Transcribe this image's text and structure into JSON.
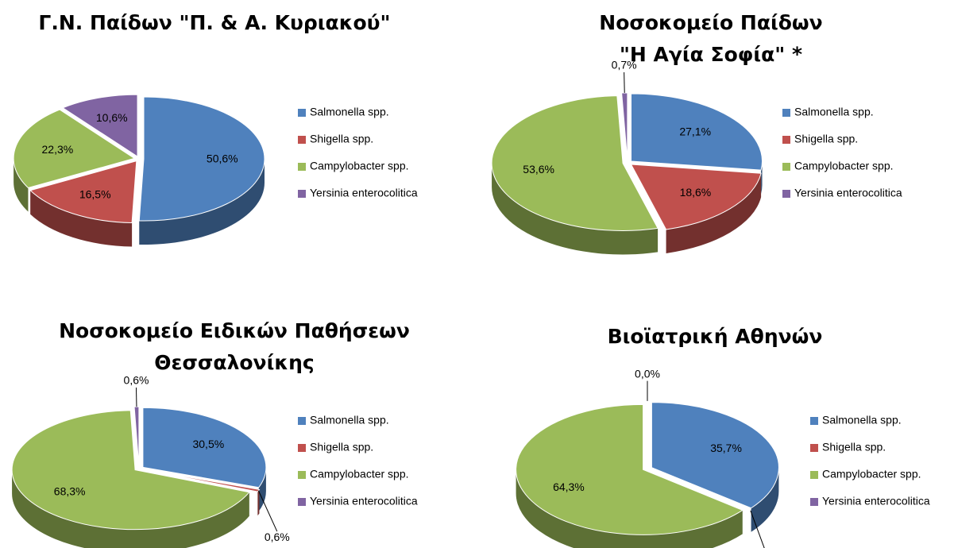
{
  "chart_data": [
    {
      "type": "pie",
      "title": [
        "Γ.Ν. Παίδων \"Π. & Α. Κυριακού\""
      ],
      "categories": [
        "Salmonella spp.",
        "Shigella spp.",
        "Campylobacter spp.",
        "Yersinia enterocolitica"
      ],
      "values": [
        50.6,
        16.5,
        22.3,
        10.6
      ],
      "value_labels": [
        "50,6%",
        "16,5%",
        "22,3%",
        "10,6%"
      ],
      "colors": [
        "#4f81bd",
        "#c0504d",
        "#9bbb59",
        "#8064a2"
      ],
      "legend": "right"
    },
    {
      "type": "pie",
      "title": [
        "Νοσοκομείο Παίδων",
        "\"Η Αγία Σοφία\" *"
      ],
      "categories": [
        "Salmonella spp.",
        "Shigella spp.",
        "Campylobacter spp.",
        "Yersinia enterocolitica"
      ],
      "values": [
        27.1,
        18.6,
        53.6,
        0.7
      ],
      "value_labels": [
        "27,1%",
        "18,6%",
        "53,6%",
        "0,7%"
      ],
      "colors": [
        "#4f81bd",
        "#c0504d",
        "#9bbb59",
        "#8064a2"
      ],
      "legend": "right"
    },
    {
      "type": "pie",
      "title": [
        "Νοσοκομείο Ειδικών Παθήσεων",
        "Θεσσαλονίκης"
      ],
      "categories": [
        "Salmonella spp.",
        "Shigella spp.",
        "Campylobacter spp.",
        "Yersinia enterocolitica"
      ],
      "values": [
        30.5,
        0.6,
        68.3,
        0.6
      ],
      "value_labels": [
        "30,5%",
        "0,6%",
        "68,3%",
        "0,6%"
      ],
      "colors": [
        "#4f81bd",
        "#c0504d",
        "#9bbb59",
        "#8064a2"
      ],
      "legend": "right"
    },
    {
      "type": "pie",
      "title": [
        "Βιοϊατρική Αθηνών"
      ],
      "categories": [
        "Salmonella spp.",
        "Shigella spp.",
        "Campylobacter spp.",
        "Yersinia enterocolitica"
      ],
      "values": [
        35.7,
        0.0,
        64.3,
        0.0
      ],
      "value_labels": [
        "35,7%",
        "0,0%",
        "64,3%",
        "0,0%"
      ],
      "colors": [
        "#4f81bd",
        "#c0504d",
        "#9bbb59",
        "#8064a2"
      ],
      "legend": "right"
    }
  ]
}
